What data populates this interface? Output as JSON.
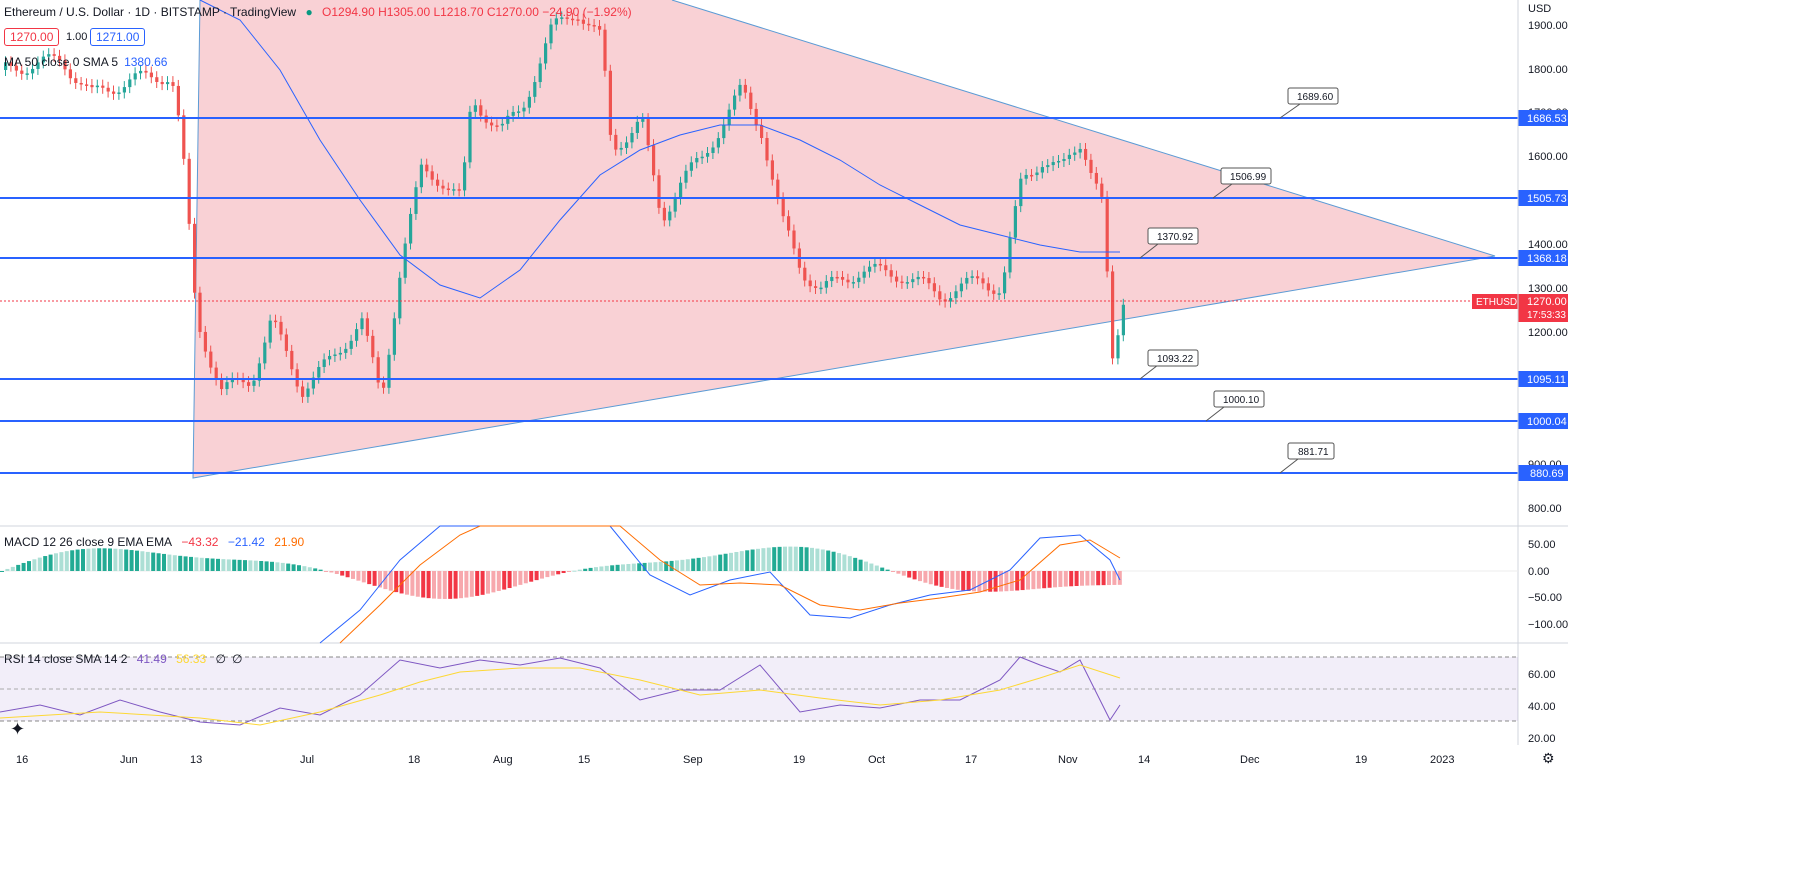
{
  "header": {
    "symbol": "Ethereum / U.S. Dollar · 1D · BITSTAMP · TradingView",
    "ohlc": "O1294.90 H1305.00 L1218.70 C1270.00 −24.90 (−1.92%)",
    "bid": "1270.00",
    "spread": "1.00",
    "ask": "1271.00",
    "ma_label": "MA 50 close 0 SMA 5",
    "ma_value": "1380.66",
    "currency": "USD"
  },
  "price_axis": [
    "1900.00",
    "1800.00",
    "1700.00",
    "1600.00",
    "1400.00",
    "1300.00",
    "1200.00",
    "900.00",
    "800.00"
  ],
  "levels": [
    {
      "label": "1686.53",
      "callout": "1689.60"
    },
    {
      "label": "1505.73",
      "callout": "1506.99"
    },
    {
      "label": "1368.18",
      "callout": "1370.92"
    },
    {
      "label": "1095.11",
      "callout": "1093.22"
    },
    {
      "label": "1000.04",
      "callout": "1000.10"
    },
    {
      "label": "880.69",
      "callout": "881.71"
    }
  ],
  "last_price": {
    "symbol": "ETHUSD",
    "price": "1270.00",
    "countdown": "17:53:33"
  },
  "macd": {
    "label": "MACD 12 26 close 9 EMA EMA",
    "hist": "−43.32",
    "macd": "−21.42",
    "signal": "21.90",
    "axis": [
      "50.00",
      "0.00",
      "−50.00",
      "−100.00"
    ]
  },
  "rsi": {
    "label": "RSI 14 close SMA 14 2",
    "rsi": "41.49",
    "sma": "56.33",
    "extra1": "∅",
    "extra2": "∅",
    "axis": [
      "60.00",
      "40.00",
      "20.00"
    ]
  },
  "time_axis": [
    "16",
    "Jun",
    "13",
    "Jul",
    "18",
    "Aug",
    "15",
    "Sep",
    "19",
    "Oct",
    "17",
    "Nov",
    "14",
    "Dec",
    "19",
    "2023"
  ],
  "colors": {
    "up": "#26a69a",
    "down": "#ef5350",
    "level": "#2962ff",
    "triangle": "#f7c6cb",
    "ma": "#2962ff"
  }
}
